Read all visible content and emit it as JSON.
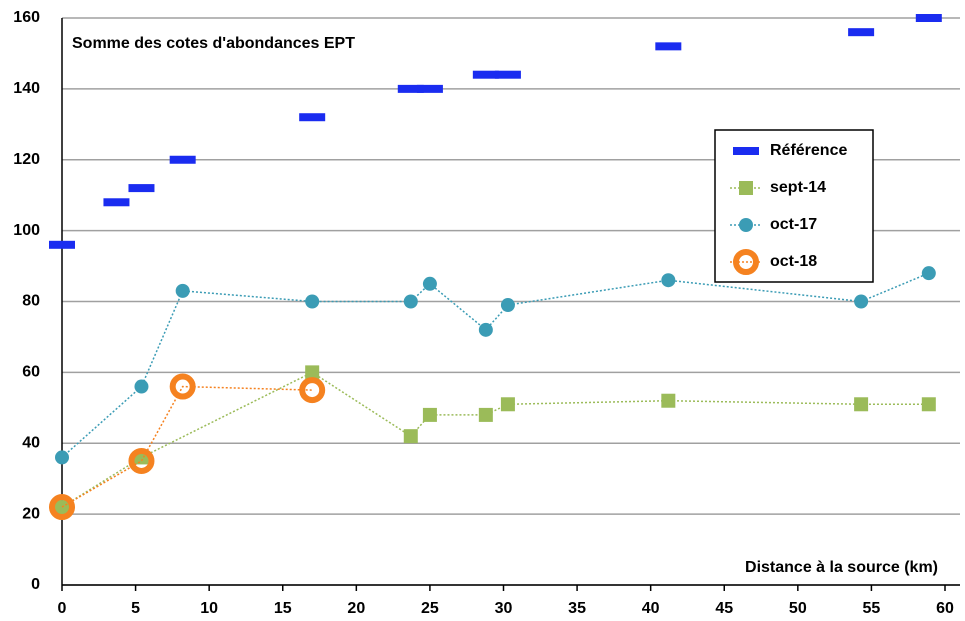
{
  "chart_data": {
    "type": "line",
    "title": "Somme des cotes d'abondances EPT",
    "x_label": "Distance à la source (km)",
    "xlim": [
      0,
      60
    ],
    "xticks": [
      0,
      5,
      10,
      15,
      20,
      25,
      30,
      35,
      40,
      45,
      50,
      55,
      60
    ],
    "ylim": [
      0,
      160
    ],
    "yticks": [
      0,
      20,
      40,
      60,
      80,
      100,
      120,
      140,
      160
    ],
    "grid": true,
    "legend": "right",
    "series": [
      {
        "name": "Référence",
        "color": "#1a2cf0",
        "marker": "dash",
        "line": "none",
        "x": [
          0,
          3.7,
          5.4,
          8.2,
          17,
          23.7,
          25,
          28.8,
          30.3,
          41.2,
          54.3,
          58.9
        ],
        "values": [
          96,
          108,
          112,
          120,
          132,
          140,
          140,
          144,
          144,
          152,
          156,
          160
        ]
      },
      {
        "name": "sept-14",
        "color": "#9bbb59",
        "marker": "square",
        "line": "dotted",
        "x": [
          0,
          5.4,
          17,
          23.7,
          25,
          28.8,
          30.3,
          41.2,
          54.3,
          58.9
        ],
        "values": [
          22,
          36,
          60,
          42,
          48,
          48,
          51,
          52,
          51,
          51
        ]
      },
      {
        "name": "oct-17",
        "color": "#3b9cb5",
        "marker": "circle",
        "line": "dotted",
        "x": [
          0,
          5.4,
          8.2,
          17,
          23.7,
          25,
          28.8,
          30.3,
          41.2,
          54.3,
          58.9
        ],
        "values": [
          36,
          56,
          83,
          80,
          80,
          85,
          72,
          79,
          86,
          80,
          88
        ]
      },
      {
        "name": "oct-18",
        "color": "#f58220",
        "marker": "ring",
        "line": "dotted",
        "x": [
          0,
          5.4,
          8.2,
          17
        ],
        "values": [
          22,
          35,
          56,
          55
        ]
      }
    ]
  }
}
